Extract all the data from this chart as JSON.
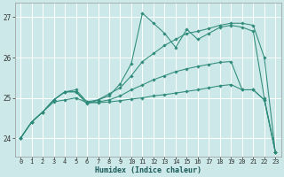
{
  "title": "",
  "xlabel": "Humidex (Indice chaleur)",
  "ylabel": "",
  "xlim": [
    -0.5,
    23.5
  ],
  "ylim": [
    23.55,
    27.35
  ],
  "xticks": [
    0,
    1,
    2,
    3,
    4,
    5,
    6,
    7,
    8,
    9,
    10,
    11,
    12,
    13,
    14,
    15,
    16,
    17,
    18,
    19,
    20,
    21,
    22,
    23
  ],
  "yticks": [
    24,
    25,
    26,
    27
  ],
  "bg_color": "#cce8e8",
  "grid_color": "#ffffff",
  "line_color": "#2e8b7a",
  "lines": [
    {
      "x": [
        0,
        1,
        2,
        3,
        4,
        5,
        6,
        7,
        8,
        9,
        10,
        11,
        12,
        13,
        14,
        15,
        16,
        17,
        18,
        19,
        20,
        21,
        22,
        23
      ],
      "y": [
        24.0,
        24.4,
        24.65,
        24.95,
        25.15,
        25.15,
        24.85,
        24.95,
        25.05,
        25.35,
        25.85,
        27.1,
        26.85,
        26.6,
        26.25,
        26.7,
        26.45,
        26.6,
        26.75,
        26.8,
        26.75,
        26.65,
        25.0,
        23.65
      ]
    },
    {
      "x": [
        0,
        1,
        2,
        3,
        4,
        5,
        6,
        7,
        8,
        9,
        10,
        11,
        12,
        13,
        14,
        15,
        16,
        17,
        18,
        19,
        20,
        21,
        22,
        23
      ],
      "y": [
        24.0,
        24.4,
        24.65,
        24.95,
        25.15,
        25.2,
        24.9,
        24.95,
        25.1,
        25.25,
        25.55,
        25.9,
        26.1,
        26.3,
        26.45,
        26.6,
        26.65,
        26.72,
        26.8,
        26.85,
        26.85,
        26.8,
        26.0,
        23.65
      ]
    },
    {
      "x": [
        0,
        1,
        2,
        3,
        4,
        5,
        6,
        7,
        8,
        9,
        10,
        11,
        12,
        13,
        14,
        15,
        16,
        17,
        18,
        19,
        20,
        21,
        22,
        23
      ],
      "y": [
        24.0,
        24.4,
        24.65,
        24.95,
        25.15,
        25.15,
        24.9,
        24.9,
        24.95,
        25.05,
        25.2,
        25.32,
        25.45,
        25.55,
        25.65,
        25.72,
        25.78,
        25.83,
        25.88,
        25.9,
        25.2,
        25.2,
        24.95,
        23.65
      ]
    },
    {
      "x": [
        0,
        1,
        2,
        3,
        4,
        5,
        6,
        7,
        8,
        9,
        10,
        11,
        12,
        13,
        14,
        15,
        16,
        17,
        18,
        19,
        20,
        21,
        22,
        23
      ],
      "y": [
        24.0,
        24.4,
        24.65,
        24.9,
        24.95,
        25.0,
        24.88,
        24.88,
        24.9,
        24.93,
        24.97,
        25.0,
        25.05,
        25.08,
        25.12,
        25.16,
        25.2,
        25.25,
        25.3,
        25.33,
        25.2,
        25.2,
        24.95,
        23.65
      ]
    }
  ]
}
